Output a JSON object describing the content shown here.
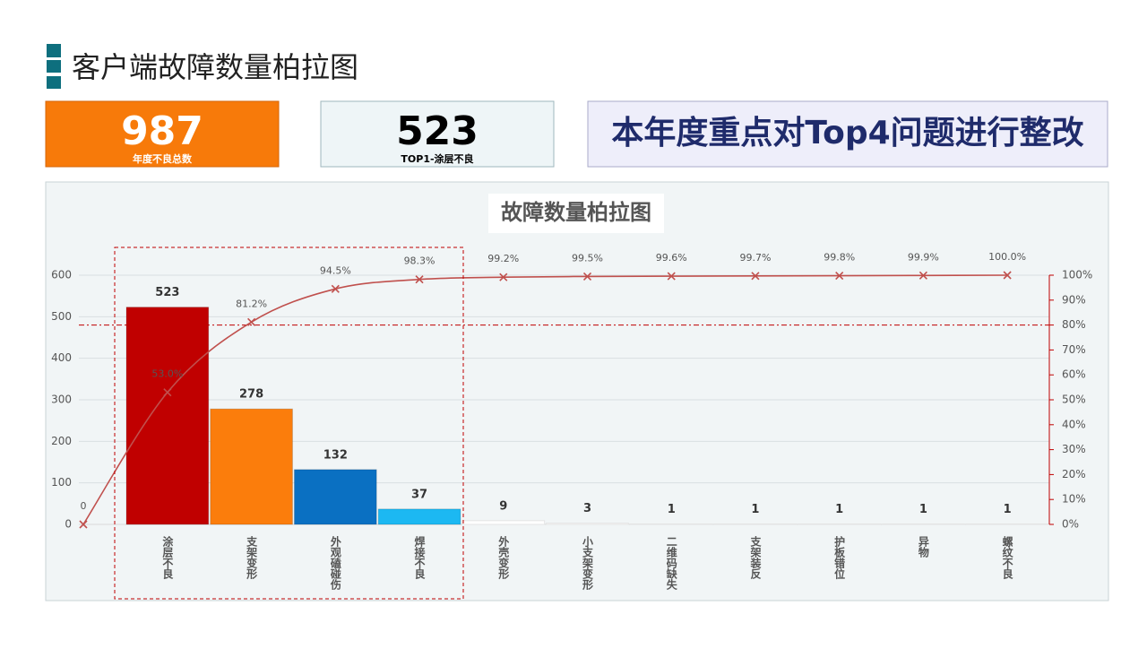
{
  "header": {
    "title": "客户端故障数量柏拉图"
  },
  "cards": [
    {
      "value": 987,
      "caption": "年度不良总数"
    },
    {
      "value": 523,
      "caption": "TOP1-涂层不良"
    }
  ],
  "banner": "本年度重点对Top4问题进行整改",
  "chart_data": {
    "type": "pareto",
    "title": "故障数量柏拉图",
    "categories": [
      "涂层不良",
      "支架变形",
      "外观磕碰伤",
      "焊接不良",
      "外壳变形",
      "小支架变形",
      "二维码缺失",
      "支架装反",
      "护板错位",
      "异物",
      "螺纹不良"
    ],
    "series": [
      {
        "type": "bar",
        "values": [
          523,
          278,
          132,
          37,
          9,
          3,
          1,
          1,
          1,
          1,
          1
        ],
        "colors": [
          "#c00000",
          "#fb7d0c",
          "#0a70c2",
          "#1cb8f2",
          "#ffffff",
          "#ffffff",
          "#ffffff",
          "#ffffff",
          "#ffffff",
          "#ffffff",
          "#ffffff"
        ]
      },
      {
        "type": "line",
        "axis": "y2",
        "color": "#c0504d",
        "origin_value": 0,
        "values": [
          53.0,
          81.2,
          94.5,
          98.3,
          99.2,
          99.5,
          99.6,
          99.7,
          99.8,
          99.9,
          100.0
        ],
        "value_labels": [
          "53.0%",
          "81.2%",
          "94.5%",
          "98.3%",
          "99.2%",
          "99.5%",
          "99.6%",
          "99.7%",
          "99.8%",
          "99.9%",
          "100.0%"
        ]
      }
    ],
    "ylim": [
      0,
      600
    ],
    "yticks": [
      0,
      100,
      200,
      300,
      400,
      500,
      600
    ],
    "y2lim": [
      0,
      100
    ],
    "y2ticks": [
      {
        "value": 0,
        "label": "0%"
      },
      {
        "value": 10,
        "label": "10%"
      },
      {
        "value": 20,
        "label": "20%"
      },
      {
        "value": 30,
        "label": "30%"
      },
      {
        "value": 40,
        "label": "40%"
      },
      {
        "value": 50,
        "label": "50%"
      },
      {
        "value": 60,
        "label": "60%"
      },
      {
        "value": 70,
        "label": "70%"
      },
      {
        "value": 80,
        "label": "80%"
      },
      {
        "value": 90,
        "label": "90%"
      },
      {
        "value": 100,
        "label": "100%"
      }
    ],
    "reference_line": {
      "axis": "y2",
      "value": 80,
      "color": "#c00000"
    },
    "grid": true
  }
}
